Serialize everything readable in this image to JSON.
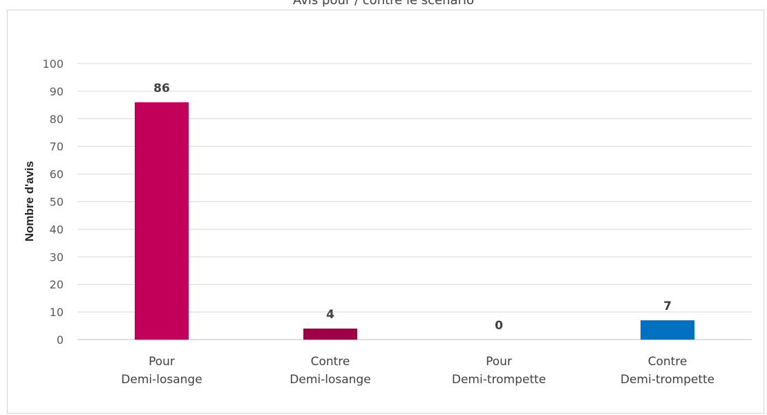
{
  "chart_data": {
    "type": "bar",
    "title": "Avis pour / contre le scénario",
    "categories": [
      [
        "Pour",
        "Demi-losange"
      ],
      [
        "Contre",
        "Demi-losange"
      ],
      [
        "Pour",
        "Demi-trompette"
      ],
      [
        "Contre",
        "Demi-trompette"
      ]
    ],
    "values": [
      86,
      4,
      0,
      7
    ],
    "data_labels": [
      "86",
      "4",
      "0",
      "7"
    ],
    "colors": [
      "#c2005a",
      "#9e0048",
      "#c2005a",
      "#0070c0"
    ],
    "ylabel": "Nombre d'avis",
    "xlabel": "",
    "ylim": [
      0,
      100
    ],
    "yticks": [
      0,
      10,
      20,
      30,
      40,
      50,
      60,
      70,
      80,
      90,
      100
    ],
    "grid": true,
    "legend": "none"
  }
}
